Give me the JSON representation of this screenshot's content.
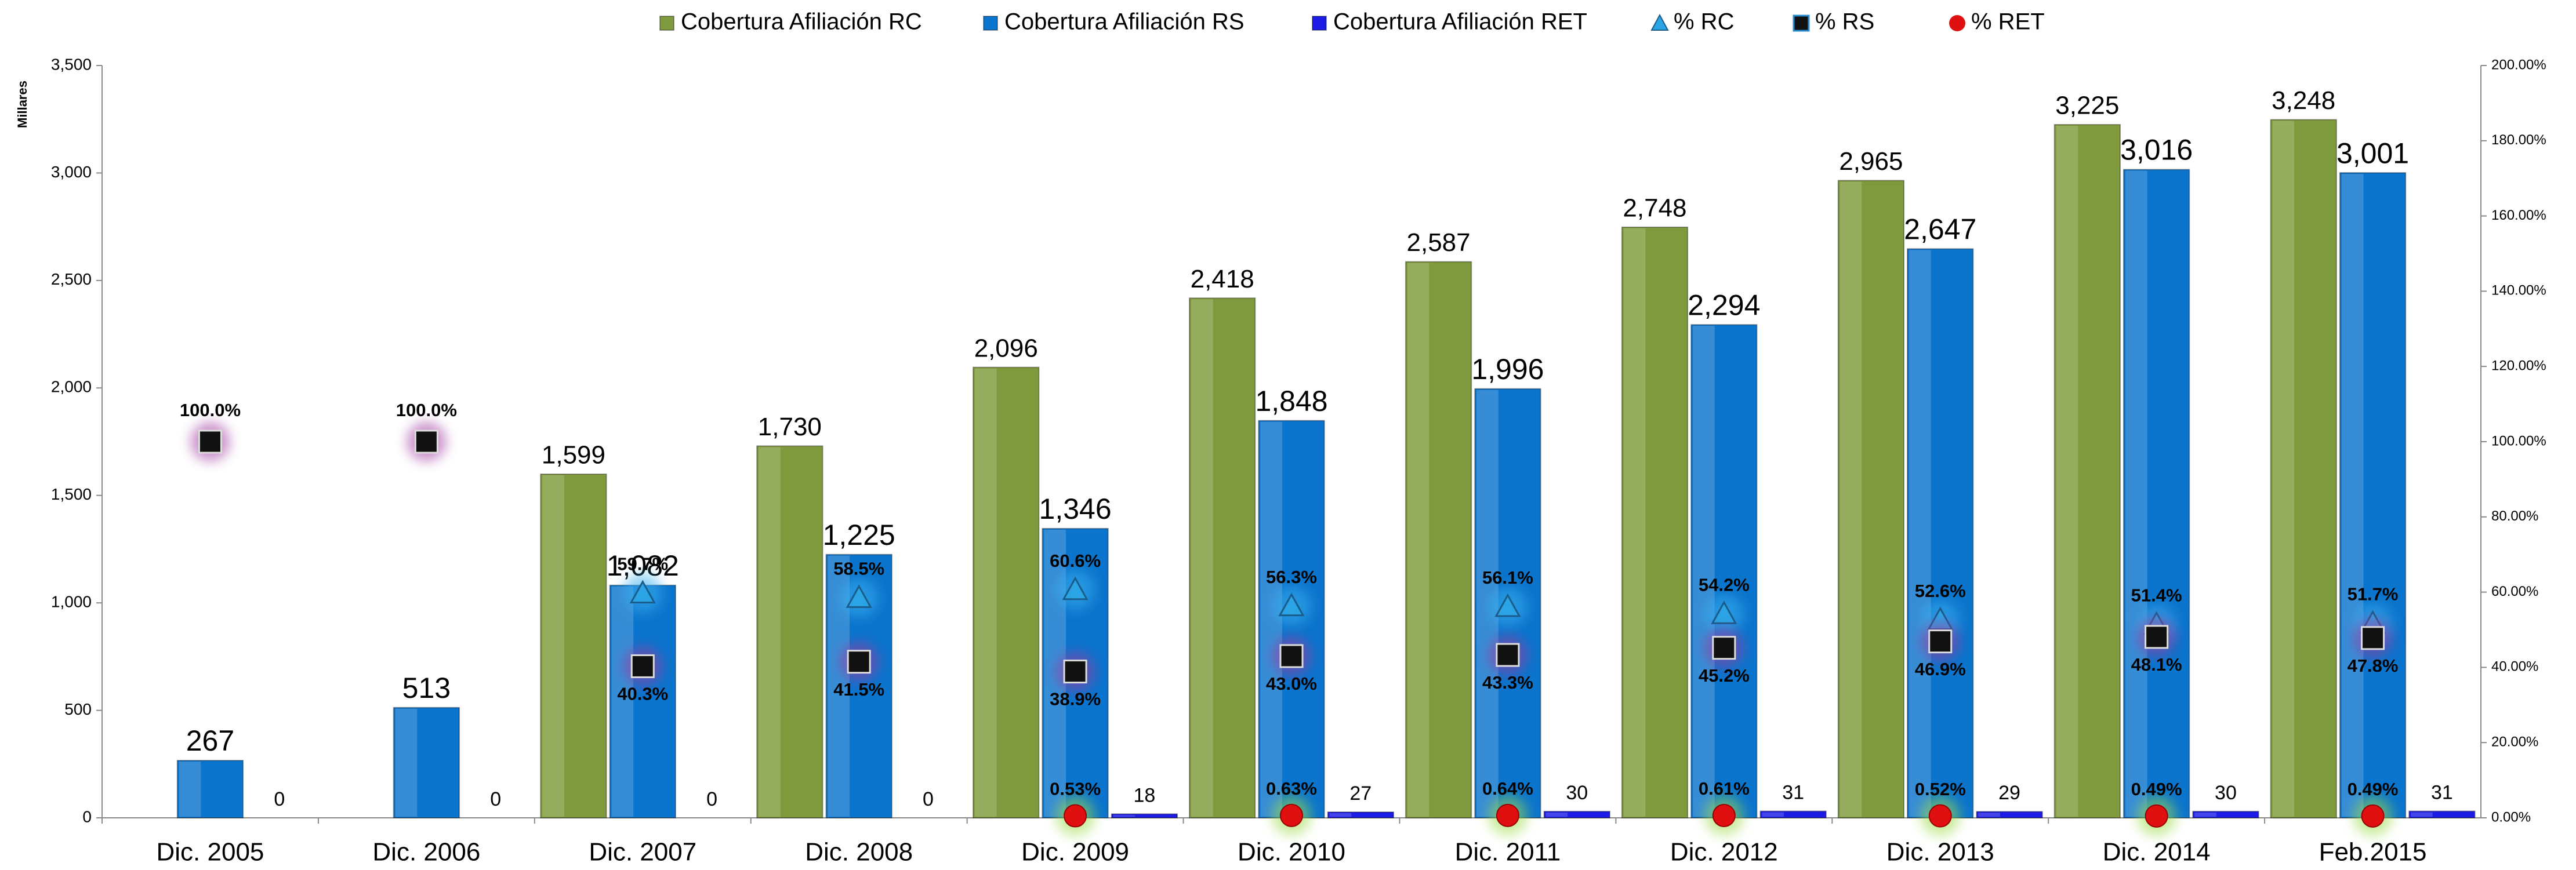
{
  "chart_data": {
    "type": "bar",
    "y_axis_label": "Millares",
    "categories": [
      "Dic. 2005",
      "Dic. 2006",
      "Dic. 2007",
      "Dic. 2008",
      "Dic. 2009",
      "Dic. 2010",
      "Dic. 2011",
      "Dic. 2012",
      "Dic. 2013",
      "Dic. 2014",
      "Feb.2015"
    ],
    "ylim": [
      0,
      3500
    ],
    "yticks": [
      0,
      500,
      {
        "value": 1000,
        "label": "1,000"
      },
      {
        "value": 1500,
        "label": "1,500"
      },
      {
        "value": 2000,
        "label": "2,000"
      },
      {
        "value": 2500,
        "label": "2,500"
      },
      {
        "value": 3000,
        "label": "3,000"
      },
      {
        "value": 3500,
        "label": "3,500"
      }
    ],
    "y2lim": [
      0,
      200
    ],
    "y2ticks": [
      {
        "value": 0,
        "label": "0.00%"
      },
      {
        "value": 20,
        "label": "20.00%"
      },
      {
        "value": 40,
        "label": "40.00%"
      },
      {
        "value": 60,
        "label": "60.00%"
      },
      {
        "value": 80,
        "label": "80.00%"
      },
      {
        "value": 100,
        "label": "100.00%"
      },
      {
        "value": 120,
        "label": "120.00%"
      },
      {
        "value": 140,
        "label": "140.00%"
      },
      {
        "value": 160,
        "label": "160.00%"
      },
      {
        "value": 180,
        "label": "180.00%"
      },
      {
        "value": 200,
        "label": "200.00%"
      }
    ],
    "legend": "top",
    "series": [
      {
        "name": "Cobertura Afiliación RC",
        "type": "bar",
        "color": "#7f9a3c",
        "values": [
          null,
          null,
          1599,
          1730,
          2096,
          2418,
          2587,
          2748,
          2965,
          3225,
          3248
        ],
        "value_labels": [
          null,
          null,
          "1,599",
          "1,730",
          "2,096",
          "2,418",
          "2,587",
          "2,748",
          "2,965",
          "3,225",
          "3,248"
        ]
      },
      {
        "name": "Cobertura Afiliación RS",
        "type": "bar",
        "color": "#0b74cc",
        "values": [
          267,
          513,
          1082,
          1225,
          1346,
          1848,
          1996,
          2294,
          2647,
          3016,
          3001
        ],
        "value_labels": [
          "267",
          "513",
          "1,082",
          "1,225",
          "1,346",
          "1,848",
          "1,996",
          "2,294",
          "2,647",
          "3,016",
          "3,001"
        ]
      },
      {
        "name": "Cobertura Afiliación RET",
        "type": "bar",
        "color": "#1c1ce6",
        "values": [
          0,
          0,
          0,
          0,
          18,
          27,
          30,
          31,
          29,
          30,
          31
        ]
      },
      {
        "name": "% RC",
        "type": "marker",
        "marker": "triangle",
        "axis": "y2",
        "color": "#2aa4e4",
        "values": [
          null,
          null,
          59.7,
          58.5,
          60.6,
          56.3,
          56.1,
          54.2,
          52.6,
          51.4,
          51.7
        ],
        "value_labels": [
          null,
          null,
          "59.7%",
          "58.5%",
          "60.6%",
          "56.3%",
          "56.1%",
          "54.2%",
          "52.6%",
          "51.4%",
          "51.7%"
        ]
      },
      {
        "name": "% RS",
        "type": "marker",
        "marker": "square",
        "axis": "y2",
        "color": "#111111",
        "values": [
          100.0,
          100.0,
          40.3,
          41.5,
          38.9,
          43.0,
          43.3,
          45.2,
          46.9,
          48.1,
          47.8
        ],
        "value_labels": [
          "100.0%",
          "100.0%",
          "40.3%",
          "41.5%",
          "38.9%",
          "43.0%",
          "43.3%",
          "45.2%",
          "46.9%",
          "48.1%",
          "47.8%"
        ]
      },
      {
        "name": "% RET",
        "type": "marker",
        "marker": "circle",
        "axis": "y2",
        "color": "#e01010",
        "values": [
          null,
          null,
          null,
          null,
          0.53,
          0.63,
          0.64,
          0.61,
          0.52,
          0.49,
          0.49
        ],
        "value_labels": [
          null,
          null,
          null,
          null,
          "0.53%",
          "0.63%",
          "0.64%",
          "0.61%",
          "0.52%",
          "0.49%",
          "0.49%"
        ]
      }
    ]
  }
}
